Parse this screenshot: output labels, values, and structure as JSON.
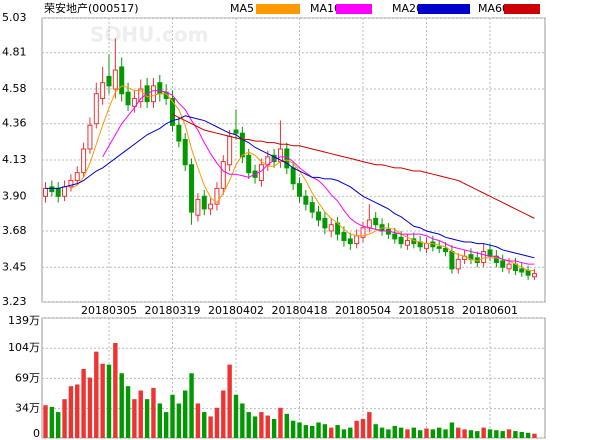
{
  "chart_data": {
    "type": "candlestick",
    "title": "荣安地产(000517)",
    "watermark": "SOHU.com",
    "categories": [
      null,
      null,
      null,
      null,
      null,
      null,
      null,
      null,
      null,
      null,
      "20180305",
      null,
      null,
      null,
      null,
      null,
      null,
      null,
      null,
      null,
      "20180319",
      null,
      null,
      null,
      null,
      null,
      null,
      null,
      null,
      null,
      "20180402",
      null,
      null,
      null,
      null,
      null,
      null,
      null,
      null,
      null,
      "20180418",
      null,
      null,
      null,
      null,
      null,
      null,
      null,
      null,
      null,
      "20180504",
      null,
      null,
      null,
      null,
      null,
      null,
      null,
      null,
      null,
      "20180518",
      null,
      null,
      null,
      null,
      null,
      null,
      null,
      null,
      null,
      "20180601",
      null,
      null,
      null,
      null,
      null,
      null,
      null
    ],
    "open": [
      3.9,
      3.96,
      3.95,
      3.9,
      3.96,
      4.0,
      4.05,
      4.2,
      4.36,
      4.52,
      4.66,
      4.58,
      4.72,
      4.56,
      4.47,
      4.5,
      4.6,
      4.5,
      4.62,
      4.56,
      4.52,
      4.35,
      4.26,
      4.1,
      3.78,
      3.9,
      3.82,
      3.85,
      3.95,
      4.1,
      4.32,
      4.3,
      4.16,
      4.06,
      4.0,
      4.1,
      4.16,
      4.12,
      4.2,
      4.08,
      3.98,
      3.9,
      3.86,
      3.8,
      3.76,
      3.68,
      3.73,
      3.67,
      3.63,
      3.6,
      3.64,
      3.7,
      3.76,
      3.72,
      3.69,
      3.66,
      3.64,
      3.59,
      3.63,
      3.61,
      3.57,
      3.61,
      3.58,
      3.57,
      3.55,
      3.44,
      3.5,
      3.53,
      3.51,
      3.48,
      3.56,
      3.52,
      3.49,
      3.44,
      3.47,
      3.44,
      3.43,
      3.39
    ],
    "high": [
      3.99,
      4.0,
      3.99,
      4.0,
      4.04,
      4.09,
      4.24,
      4.4,
      4.62,
      4.72,
      4.8,
      4.9,
      4.78,
      4.62,
      4.57,
      4.64,
      4.65,
      4.65,
      4.67,
      4.61,
      4.57,
      4.4,
      4.3,
      4.14,
      3.92,
      3.94,
      3.89,
      3.99,
      4.16,
      4.32,
      4.45,
      4.34,
      4.2,
      4.1,
      4.14,
      4.19,
      4.2,
      4.38,
      4.24,
      4.12,
      4.02,
      3.94,
      3.9,
      3.84,
      3.8,
      3.76,
      3.77,
      3.71,
      3.67,
      3.69,
      3.74,
      3.85,
      3.8,
      3.76,
      3.73,
      3.7,
      3.68,
      3.66,
      3.67,
      3.65,
      3.64,
      3.65,
      3.62,
      3.61,
      3.59,
      3.54,
      3.56,
      3.57,
      3.55,
      3.6,
      3.6,
      3.56,
      3.53,
      3.51,
      3.51,
      3.48,
      3.46,
      3.44
    ],
    "low": [
      3.86,
      3.9,
      3.86,
      3.87,
      3.93,
      3.97,
      4.02,
      4.17,
      4.33,
      4.48,
      4.55,
      4.52,
      4.5,
      4.44,
      4.43,
      4.46,
      4.46,
      4.46,
      4.5,
      4.48,
      4.31,
      4.21,
      4.06,
      3.72,
      3.74,
      3.78,
      3.78,
      3.81,
      3.91,
      4.06,
      4.26,
      4.11,
      4.01,
      3.98,
      3.96,
      4.06,
      4.08,
      4.08,
      4.04,
      3.94,
      3.86,
      3.81,
      3.76,
      3.71,
      3.66,
      3.64,
      3.62,
      3.58,
      3.56,
      3.57,
      3.61,
      3.67,
      3.69,
      3.65,
      3.63,
      3.6,
      3.57,
      3.56,
      3.57,
      3.55,
      3.54,
      3.55,
      3.54,
      3.52,
      3.41,
      3.41,
      3.47,
      3.47,
      3.45,
      3.45,
      3.49,
      3.45,
      3.42,
      3.41,
      3.4,
      3.39,
      3.37,
      3.37
    ],
    "close": [
      3.95,
      3.93,
      3.9,
      3.96,
      4.0,
      4.05,
      4.2,
      4.35,
      4.55,
      4.62,
      4.6,
      4.7,
      4.55,
      4.48,
      4.52,
      4.58,
      4.5,
      4.6,
      4.55,
      4.52,
      4.35,
      4.25,
      4.1,
      3.8,
      3.88,
      3.82,
      3.85,
      3.95,
      4.12,
      4.28,
      4.3,
      4.15,
      4.05,
      4.02,
      4.1,
      4.15,
      4.12,
      4.2,
      4.08,
      3.98,
      3.9,
      3.85,
      3.8,
      3.75,
      3.7,
      3.72,
      3.66,
      3.62,
      3.6,
      3.65,
      3.7,
      3.75,
      3.72,
      3.68,
      3.66,
      3.63,
      3.6,
      3.62,
      3.6,
      3.58,
      3.6,
      3.58,
      3.57,
      3.55,
      3.44,
      3.5,
      3.52,
      3.5,
      3.48,
      3.55,
      3.52,
      3.48,
      3.45,
      3.47,
      3.43,
      3.42,
      3.4,
      3.41
    ],
    "volume": [
      38,
      36,
      30,
      45,
      60,
      62,
      80,
      70,
      100,
      86,
      85,
      110,
      75,
      60,
      45,
      55,
      45,
      58,
      40,
      30,
      50,
      40,
      55,
      75,
      40,
      30,
      25,
      35,
      55,
      85,
      50,
      40,
      30,
      25,
      30,
      26,
      22,
      35,
      28,
      20,
      18,
      15,
      14,
      18,
      16,
      12,
      15,
      10,
      12,
      20,
      22,
      30,
      16,
      12,
      10,
      14,
      12,
      10,
      12,
      9,
      11,
      10,
      12,
      10,
      18,
      12,
      10,
      9,
      8,
      12,
      10,
      9,
      8,
      10,
      8,
      7,
      6,
      5
    ],
    "up_color": "#ee3333",
    "down_color": "#009900",
    "ma": [
      {
        "name": "MA5",
        "color": "#ff9900",
        "values": [
          null,
          null,
          null,
          null,
          3.95,
          3.97,
          4.02,
          4.11,
          4.23,
          4.35,
          4.46,
          4.56,
          4.6,
          4.59,
          4.57,
          4.57,
          4.53,
          4.54,
          4.55,
          4.55,
          4.5,
          4.45,
          4.35,
          4.2,
          4.08,
          3.97,
          3.89,
          3.86,
          3.92,
          4.0,
          4.1,
          4.16,
          4.18,
          4.16,
          4.12,
          4.09,
          4.09,
          4.12,
          4.13,
          4.11,
          4.06,
          4.0,
          3.92,
          3.86,
          3.8,
          3.76,
          3.73,
          3.69,
          3.66,
          3.65,
          3.65,
          3.66,
          3.68,
          3.7,
          3.7,
          3.69,
          3.66,
          3.64,
          3.62,
          3.61,
          3.6,
          3.6,
          3.59,
          3.58,
          3.55,
          3.53,
          3.52,
          3.5,
          3.49,
          3.51,
          3.51,
          3.51,
          3.5,
          3.49,
          3.47,
          3.45,
          3.43,
          3.43
        ]
      },
      {
        "name": "MA10",
        "color": "#ff00ff",
        "values": [
          null,
          null,
          null,
          null,
          null,
          null,
          null,
          null,
          null,
          4.15,
          4.22,
          4.29,
          4.36,
          4.41,
          4.46,
          4.52,
          4.55,
          4.57,
          4.57,
          4.56,
          4.54,
          4.49,
          4.45,
          4.38,
          4.32,
          4.24,
          4.17,
          4.11,
          4.06,
          4.04,
          4.04,
          4.03,
          4.02,
          4.04,
          4.06,
          4.1,
          4.13,
          4.15,
          4.15,
          4.12,
          4.08,
          4.05,
          4.02,
          4.0,
          3.96,
          3.91,
          3.87,
          3.81,
          3.76,
          3.73,
          3.71,
          3.7,
          3.69,
          3.68,
          3.68,
          3.67,
          3.66,
          3.66,
          3.66,
          3.66,
          3.65,
          3.63,
          3.62,
          3.6,
          3.58,
          3.57,
          3.56,
          3.55,
          3.54,
          3.53,
          3.52,
          3.52,
          3.5,
          3.49,
          3.49,
          3.48,
          3.47,
          3.47
        ]
      },
      {
        "name": "MA20",
        "color": "#0000cc",
        "values": [
          3.95,
          3.95,
          3.95,
          3.96,
          3.97,
          3.98,
          4.0,
          4.03,
          4.06,
          4.08,
          4.11,
          4.14,
          4.17,
          4.2,
          4.23,
          4.26,
          4.29,
          4.31,
          4.33,
          4.36,
          4.38,
          4.39,
          4.41,
          4.4,
          4.39,
          4.38,
          4.36,
          4.34,
          4.32,
          4.3,
          4.29,
          4.26,
          4.24,
          4.21,
          4.19,
          4.17,
          4.15,
          4.13,
          4.11,
          4.08,
          4.06,
          4.04,
          4.02,
          4.02,
          4.01,
          4.01,
          4.0,
          3.98,
          3.96,
          3.93,
          3.9,
          3.88,
          3.86,
          3.84,
          3.82,
          3.79,
          3.77,
          3.74,
          3.71,
          3.7,
          3.68,
          3.67,
          3.66,
          3.64,
          3.63,
          3.62,
          3.61,
          3.61,
          3.6,
          3.6,
          3.59,
          3.58,
          3.56,
          3.55,
          3.54,
          3.53,
          3.52,
          3.51
        ]
      },
      {
        "name": "MA60",
        "color": "#cc0000",
        "values": [
          null,
          null,
          null,
          null,
          null,
          null,
          null,
          null,
          null,
          null,
          null,
          null,
          null,
          null,
          null,
          null,
          null,
          null,
          null,
          null,
          4.42,
          4.4,
          4.38,
          4.36,
          4.34,
          4.32,
          4.31,
          4.3,
          4.29,
          4.28,
          4.27,
          4.26,
          4.26,
          4.25,
          4.25,
          4.24,
          4.24,
          4.23,
          4.23,
          4.22,
          4.22,
          4.21,
          4.2,
          4.19,
          4.18,
          4.17,
          4.16,
          4.15,
          4.14,
          4.13,
          4.12,
          4.11,
          4.1,
          4.1,
          4.09,
          4.08,
          4.08,
          4.07,
          4.06,
          4.06,
          4.05,
          4.04,
          4.03,
          4.02,
          4.01,
          4.0,
          3.98,
          3.96,
          3.94,
          3.92,
          3.9,
          3.88,
          3.86,
          3.84,
          3.82,
          3.8,
          3.78,
          3.76
        ]
      }
    ],
    "ylim": [
      3.23,
      5.03
    ],
    "yticks": [
      5.03,
      4.81,
      4.58,
      4.36,
      4.13,
      {
        "value": 3.9,
        "label": "3.90"
      },
      3.68,
      3.45,
      3.23
    ],
    "vlim": [
      0,
      139
    ],
    "vticks": [
      {
        "value": 139,
        "label": "139万"
      },
      {
        "value": 104,
        "label": "104万"
      },
      {
        "value": 69,
        "label": "69万"
      },
      {
        "value": 34,
        "label": "34万"
      },
      0
    ],
    "grid": true
  }
}
